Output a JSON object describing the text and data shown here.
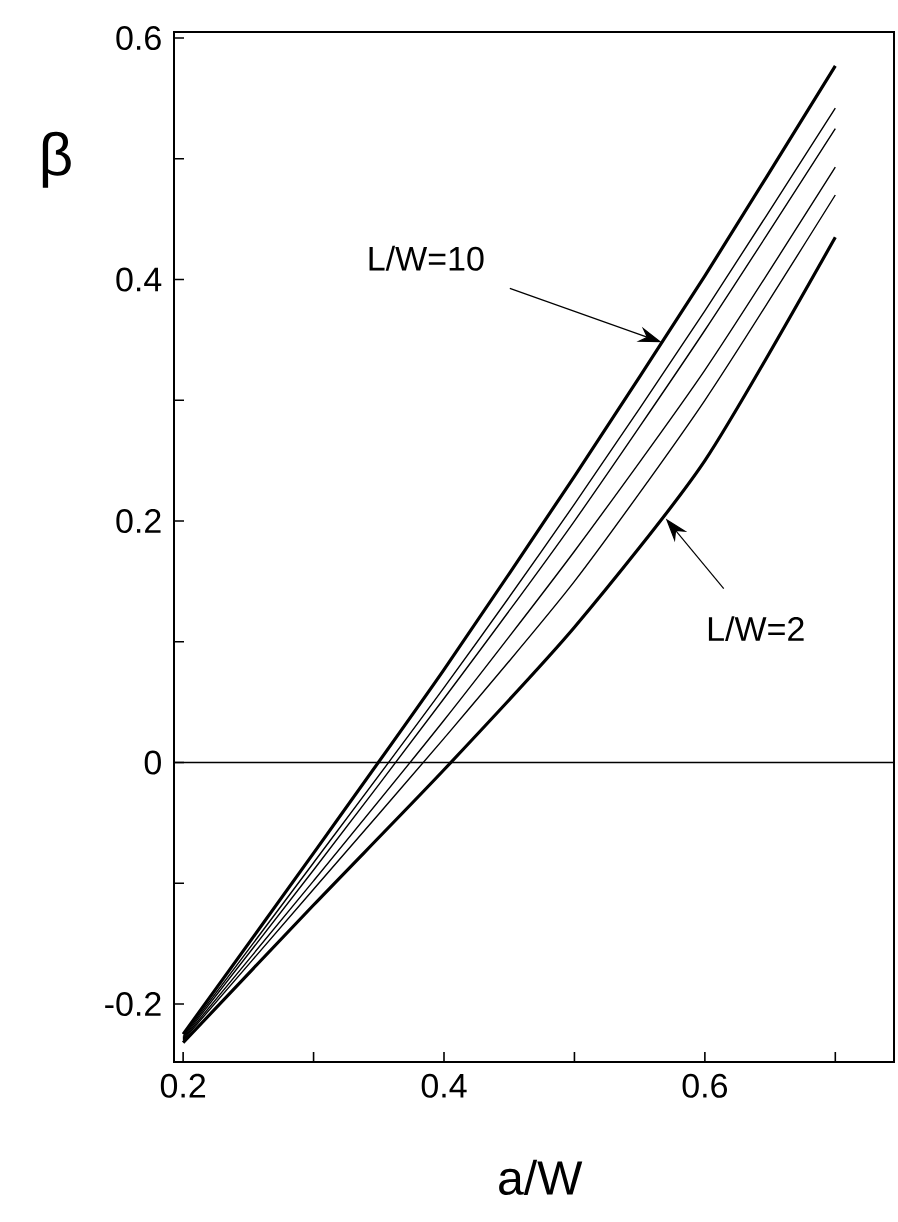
{
  "chart_data": {
    "type": "line",
    "xlabel": "a/W",
    "ylabel": "β",
    "x": [
      0.2,
      0.3,
      0.4,
      0.5,
      0.6,
      0.7
    ],
    "series": [
      {
        "color": "#000000",
        "values": [
          -0.225,
          -0.075,
          0.077,
          0.237,
          0.403,
          0.577
        ]
      },
      {
        "color": "#000000",
        "values": [
          -0.227,
          -0.083,
          0.062,
          0.214,
          0.374,
          0.542
        ]
      },
      {
        "color": "#000000",
        "values": [
          -0.228,
          -0.089,
          0.053,
          0.2,
          0.358,
          0.525
        ]
      },
      {
        "color": "#000000",
        "values": [
          -0.229,
          -0.098,
          0.035,
          0.175,
          0.325,
          0.493
        ]
      },
      {
        "color": "#000000",
        "values": [
          -0.23,
          -0.105,
          0.02,
          0.15,
          0.3,
          0.47
        ]
      },
      {
        "color": "#000000",
        "values": [
          -0.232,
          -0.118,
          -0.006,
          0.112,
          0.25,
          0.435
        ]
      }
    ],
    "xlim": [
      0.193,
      0.745
    ],
    "ylim": [
      -0.248,
      0.605
    ],
    "xticks": [
      0.2,
      {
        "value": 0.3,
        "label": null
      },
      0.4,
      {
        "value": 0.5,
        "label": null
      },
      0.6,
      {
        "value": 0.7,
        "label": null
      }
    ],
    "yticks": [
      -0.2,
      {
        "value": -0.1,
        "label": null
      },
      0,
      {
        "value": 0.1,
        "label": null
      },
      0.2,
      {
        "value": 0.3,
        "label": null
      },
      0.4,
      {
        "value": 0.5,
        "label": null
      },
      0.6
    ],
    "ref_lines": [
      {
        "axis": "y",
        "value": 0
      }
    ],
    "annotations": [
      {
        "text": "L/W=10",
        "x": 0.567,
        "y": 0.348
      },
      {
        "text": "L/W=2",
        "x": 0.57,
        "y": 0.202
      }
    ],
    "marker": "none",
    "line_style": "solid"
  }
}
